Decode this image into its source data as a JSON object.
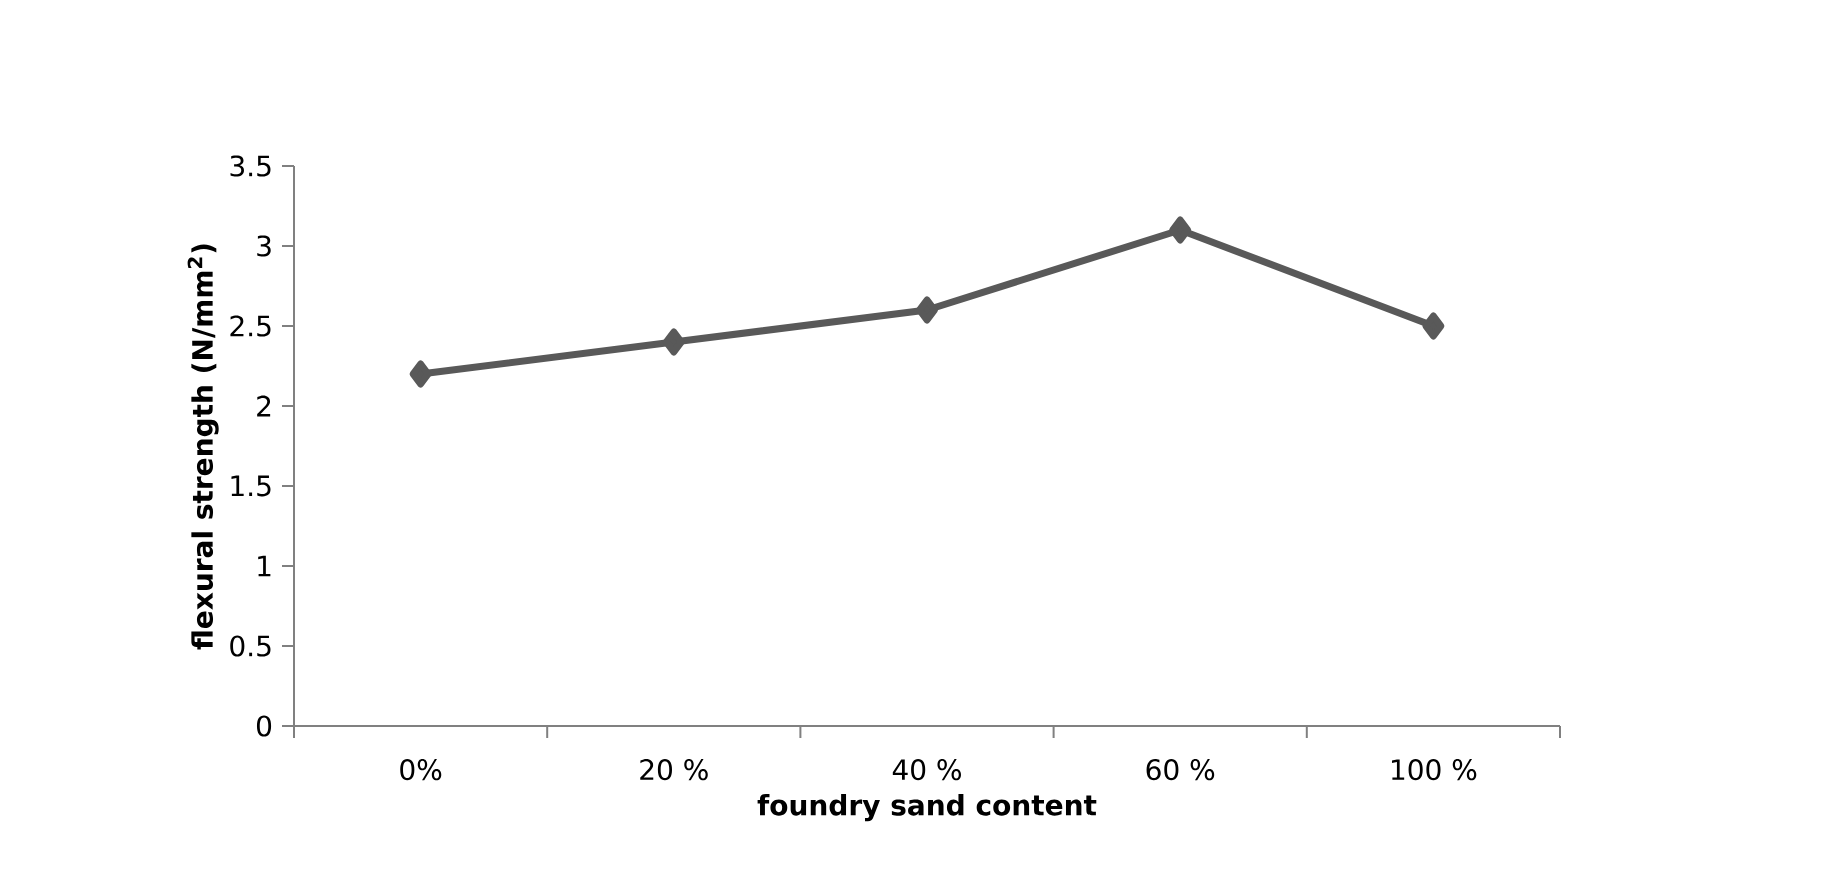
{
  "chart_data": {
    "type": "line",
    "xlabel": "foundry sand content",
    "ylabel": "flexural strength (N/mm$^{2}$)",
    "categories": [
      "0%",
      "20 %",
      "40 %",
      "60 %",
      "100 %"
    ],
    "series": [
      {
        "color": "#595959",
        "values": [
          2.2,
          2.4,
          2.6,
          3.1,
          2.5
        ]
      }
    ],
    "ylim": [
      0,
      3.5
    ],
    "yticks": [
      0,
      0.5,
      1,
      1.5,
      2,
      2.5,
      3,
      3.5
    ],
    "marker": "diamond",
    "line_style": "solid",
    "grid": false
  }
}
